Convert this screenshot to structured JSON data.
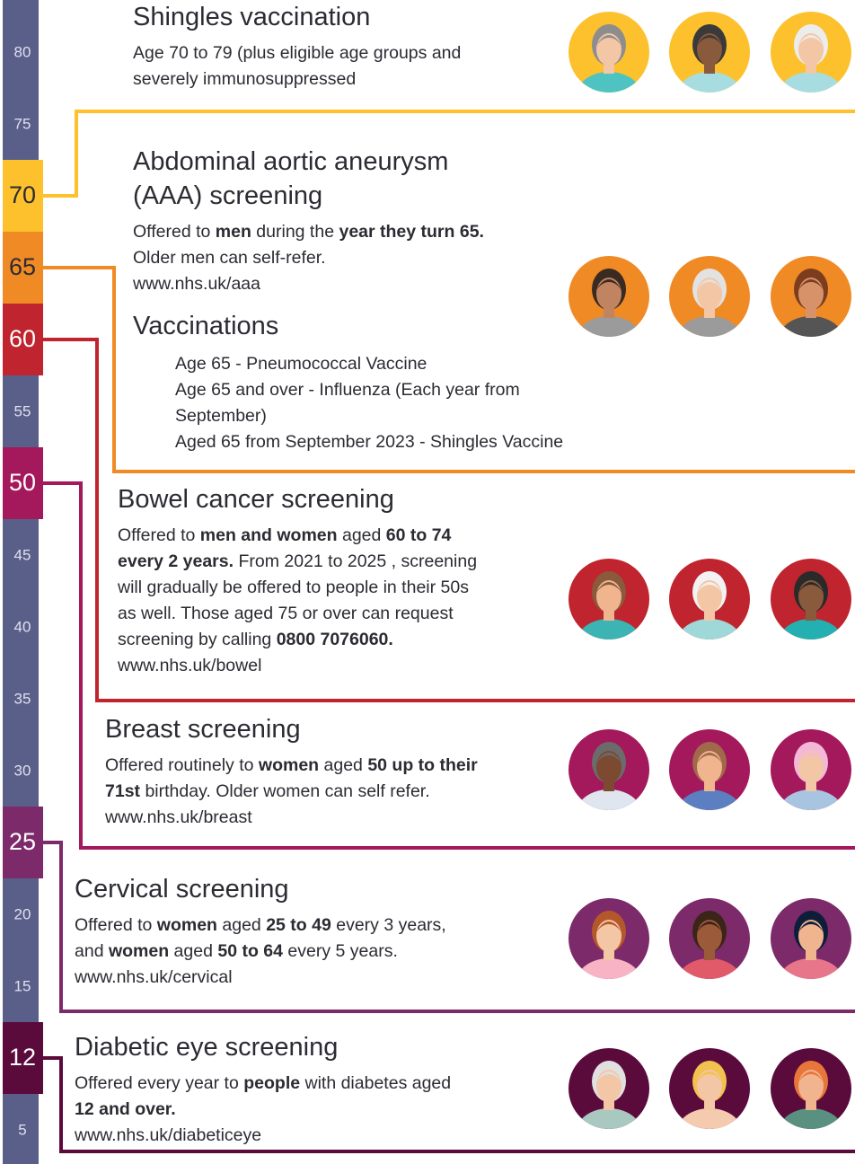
{
  "ruler": [
    {
      "label": "80"
    },
    {
      "label": "75"
    },
    {
      "label": "70",
      "color": "#fcc12d"
    },
    {
      "label": "65",
      "color": "#f08a24"
    },
    {
      "label": "60",
      "color": "#c0242e"
    },
    {
      "label": "55"
    },
    {
      "label": "50",
      "color": "#a3195b"
    },
    {
      "label": "45"
    },
    {
      "label": "40"
    },
    {
      "label": "35"
    },
    {
      "label": "30"
    },
    {
      "label": "25",
      "color": "#7d2a6a"
    },
    {
      "label": "20"
    },
    {
      "label": "15"
    },
    {
      "label": "12",
      "color": "#5b0a3c"
    },
    {
      "label": "5"
    }
  ],
  "sections": [
    {
      "title": [
        "Shingles vaccination"
      ],
      "body": [
        [
          {
            "text": "Age 70 to 79 (plus eligible age groups and"
          }
        ],
        [
          {
            "text": "severely immunosuppressed"
          }
        ]
      ]
    },
    {
      "title": [
        "Abdominal aortic aneurysm",
        "(AAA) screening"
      ],
      "body": [
        [
          {
            "text": "Offered to "
          },
          {
            "text": "men",
            "bold": true
          },
          {
            "text": " during the "
          },
          {
            "text": "year they turn 65.",
            "bold": true
          }
        ],
        [
          {
            "text": "Older men can self-refer."
          }
        ],
        [
          {
            "text": "www.nhs.uk/aaa"
          }
        ]
      ]
    },
    {
      "title": [
        "Vaccinations"
      ],
      "body": [
        [
          {
            "text": "Age 65 - Pneumococcal Vaccine"
          }
        ],
        [
          {
            "text": "Age 65 and over - Influenza (Each year from"
          }
        ],
        [
          {
            "text": "September)"
          }
        ],
        [
          {
            "text": "Aged 65 from September 2023 - Shingles Vaccine"
          }
        ]
      ]
    },
    {
      "title": [
        "Bowel cancer screening"
      ],
      "body": [
        [
          {
            "text": "Offered to "
          },
          {
            "text": "men and women",
            "bold": true
          },
          {
            "text": " aged "
          },
          {
            "text": "60 to 74",
            "bold": true
          }
        ],
        [
          {
            "text": "every 2 years.",
            "bold": true
          },
          {
            "text": " From 2021 to 2025 , screening"
          }
        ],
        [
          {
            "text": "will gradually be offered to people in their 50s"
          }
        ],
        [
          {
            "text": "as well. Those aged 75 or over can request"
          }
        ],
        [
          {
            "text": "screening by calling "
          },
          {
            "text": "0800 7076060.",
            "bold": true
          }
        ],
        [
          {
            "text": "www.nhs.uk/bowel"
          }
        ]
      ]
    },
    {
      "title": [
        "Breast screening"
      ],
      "body": [
        [
          {
            "text": "Offered routinely to "
          },
          {
            "text": "women",
            "bold": true
          },
          {
            "text": " aged "
          },
          {
            "text": "50 up to their",
            "bold": true
          }
        ],
        [
          {
            "text": "71st",
            "bold": true
          },
          {
            "text": " birthday. Older women can self refer."
          }
        ],
        [
          {
            "text": "www.nhs.uk/breast"
          }
        ]
      ]
    },
    {
      "title": [
        "Cervical screening"
      ],
      "body": [
        [
          {
            "text": "Offered to "
          },
          {
            "text": "women",
            "bold": true
          },
          {
            "text": " aged "
          },
          {
            "text": "25 to 49",
            "bold": true
          },
          {
            "text": " every 3 years,"
          }
        ],
        [
          {
            "text": "and "
          },
          {
            "text": "women",
            "bold": true
          },
          {
            "text": " aged "
          },
          {
            "text": "50 to 64",
            "bold": true
          },
          {
            "text": " every 5 years."
          }
        ],
        [
          {
            "text": "www.nhs.uk/cervical"
          }
        ]
      ]
    },
    {
      "title": [
        "Diabetic eye screening"
      ],
      "body": [
        [
          {
            "text": "Offered every year to "
          },
          {
            "text": "people",
            "bold": true
          },
          {
            "text": " with diabetes aged"
          }
        ],
        [
          {
            "text": "12 and over.",
            "bold": true
          }
        ],
        [
          {
            "text": "www.nhs.uk/diabeticeye"
          }
        ]
      ]
    }
  ]
}
